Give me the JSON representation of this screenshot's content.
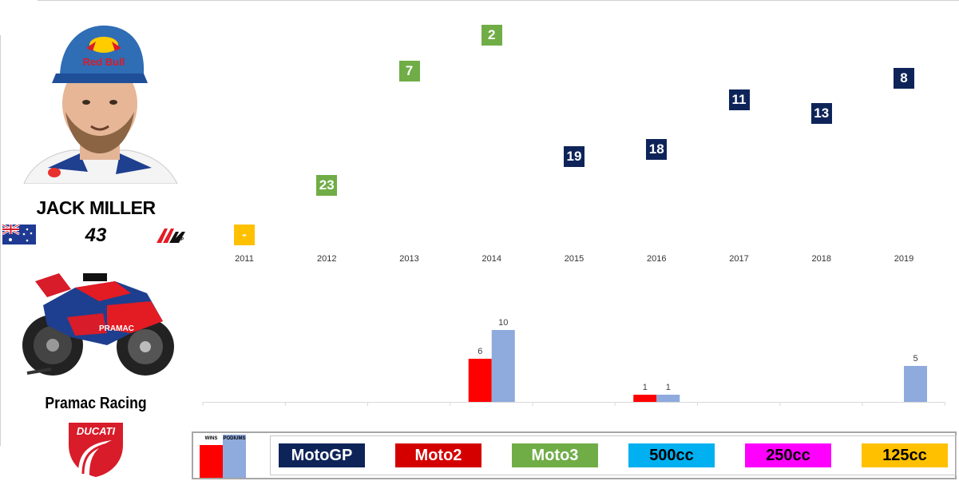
{
  "rider": {
    "name": "JACK MILLER",
    "number": "43",
    "team": "Pramac Racing",
    "country_flag": "australia-flag-icon",
    "series_logo": "motogp-logo-icon",
    "manufacturer_logo": "ducati-logo-icon",
    "helmet_text": "Red Bull",
    "bike_text": "PRAMAC"
  },
  "colors": {
    "MotoGP": "#0e2459",
    "Moto2": "#d40000",
    "Moto3": "#70ad47",
    "500cc": "#00b0f0",
    "250cc": "#ff00ff",
    "125cc": "#ffc000",
    "wins": "#ff0000",
    "podiums": "#8faadc"
  },
  "legend": {
    "wins_label": "WINS",
    "podiums_label": "PODIUMS",
    "classes": [
      "MotoGP",
      "Moto2",
      "Moto3",
      "500cc",
      "250cc",
      "125cc"
    ]
  },
  "chart_data": [
    {
      "type": "scatter",
      "title": "",
      "x": [
        "2011",
        "2012",
        "2013",
        "2014",
        "2015",
        "2016",
        "2017",
        "2018",
        "2019"
      ],
      "positions": [
        "-",
        "23",
        "7",
        "2",
        "19",
        "18",
        "11",
        "13",
        "8"
      ],
      "classes": [
        "125cc",
        "Moto3",
        "Moto3",
        "Moto3",
        "MotoGP",
        "MotoGP",
        "MotoGP",
        "MotoGP",
        "MotoGP"
      ],
      "note_y_axis": "inverted championship position, no axis drawn"
    },
    {
      "type": "bar",
      "categories": [
        "2011",
        "2012",
        "2013",
        "2014",
        "2015",
        "2016",
        "2017",
        "2018",
        "2019"
      ],
      "series": [
        {
          "name": "WINS",
          "values": [
            0,
            0,
            0,
            6,
            0,
            1,
            0,
            0,
            0
          ]
        },
        {
          "name": "PODIUMS",
          "values": [
            0,
            0,
            0,
            10,
            0,
            1,
            0,
            0,
            5
          ]
        }
      ],
      "data_labels_wins": [
        "",
        "",
        "",
        "6",
        "",
        "1",
        "",
        "",
        ""
      ],
      "data_labels_podiums": [
        "",
        "",
        "",
        "10",
        "",
        "1",
        "",
        "",
        "5"
      ],
      "ylim": [
        0,
        10
      ],
      "grid": false
    }
  ]
}
